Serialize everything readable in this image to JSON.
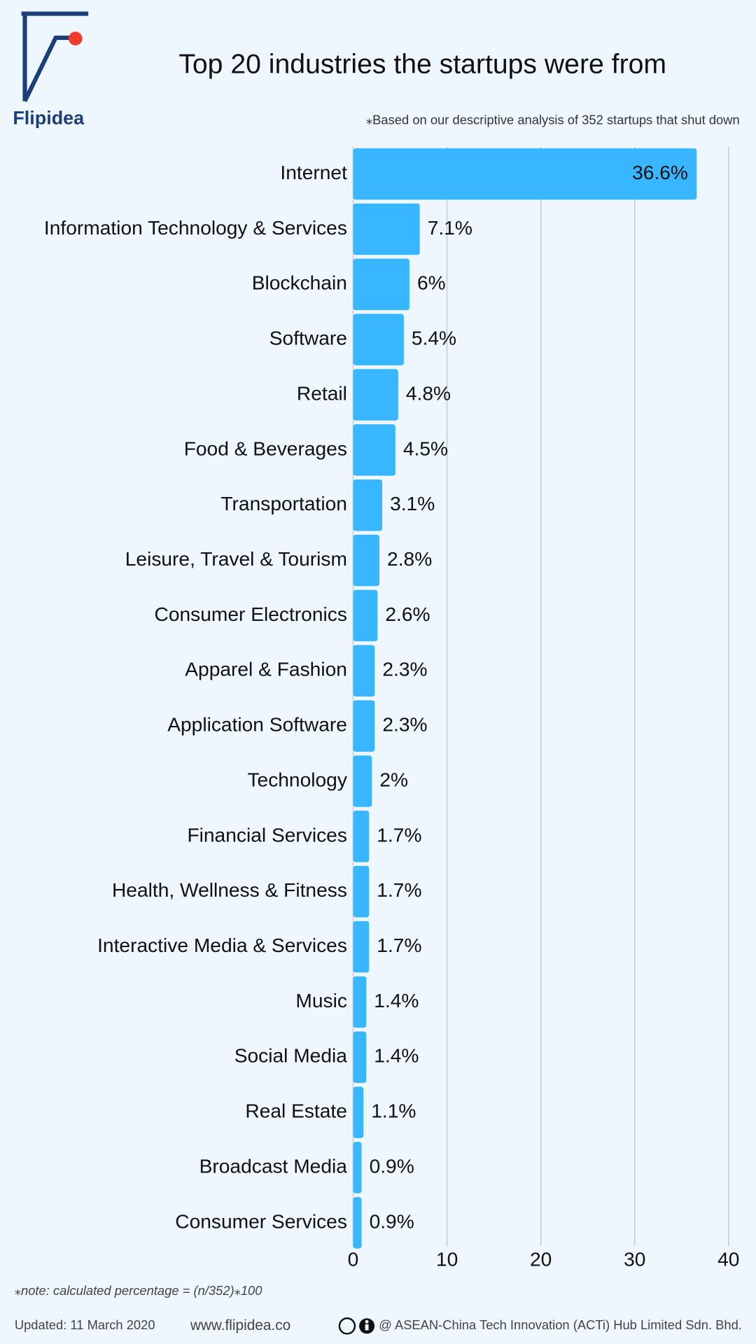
{
  "branding": {
    "logo": "Flipidea"
  },
  "chart_data": {
    "type": "bar",
    "orientation": "horizontal",
    "title": "Top 20 industries the startups were from",
    "subtitle": "⁎Based on our descriptive analysis of 352 startups that shut down",
    "categories": [
      "Internet",
      "Information Technology & Services",
      "Blockchain",
      "Software",
      "Retail",
      "Food & Beverages",
      "Transportation",
      "Leisure, Travel & Tourism",
      "Consumer Electronics",
      "Apparel & Fashion",
      "Application Software",
      "Technology",
      "Financial Services",
      "Health, Wellness & Fitness",
      "Interactive Media & Services",
      "Music",
      "Social Media",
      "Real Estate",
      "Broadcast Media",
      "Consumer Services"
    ],
    "values": [
      36.6,
      7.1,
      6,
      5.4,
      4.8,
      4.5,
      3.1,
      2.8,
      2.6,
      2.3,
      2.3,
      2,
      1.7,
      1.7,
      1.7,
      1.4,
      1.4,
      1.1,
      0.9,
      0.9
    ],
    "value_labels": [
      "36.6%",
      "7.1%",
      "6%",
      "5.4%",
      "4.8%",
      "4.5%",
      "3.1%",
      "2.8%",
      "2.6%",
      "2.3%",
      "2.3%",
      "2%",
      "1.7%",
      "1.7%",
      "1.7%",
      "1.4%",
      "1.4%",
      "1.1%",
      "0.9%",
      "0.9%"
    ],
    "color": "#38b6ff",
    "xlim": [
      0,
      40
    ],
    "xticks": [
      0,
      10,
      20,
      30,
      40
    ],
    "grid": true,
    "note": "⁎note: calculated percentage = (n/352)⁎100"
  },
  "footer": {
    "updated": "Updated: 11 March 2020",
    "website": "www.flipidea.co",
    "copyright": "@ ASEAN-China Tech Innovation (ACTi) Hub Limited Sdn. Bhd."
  }
}
